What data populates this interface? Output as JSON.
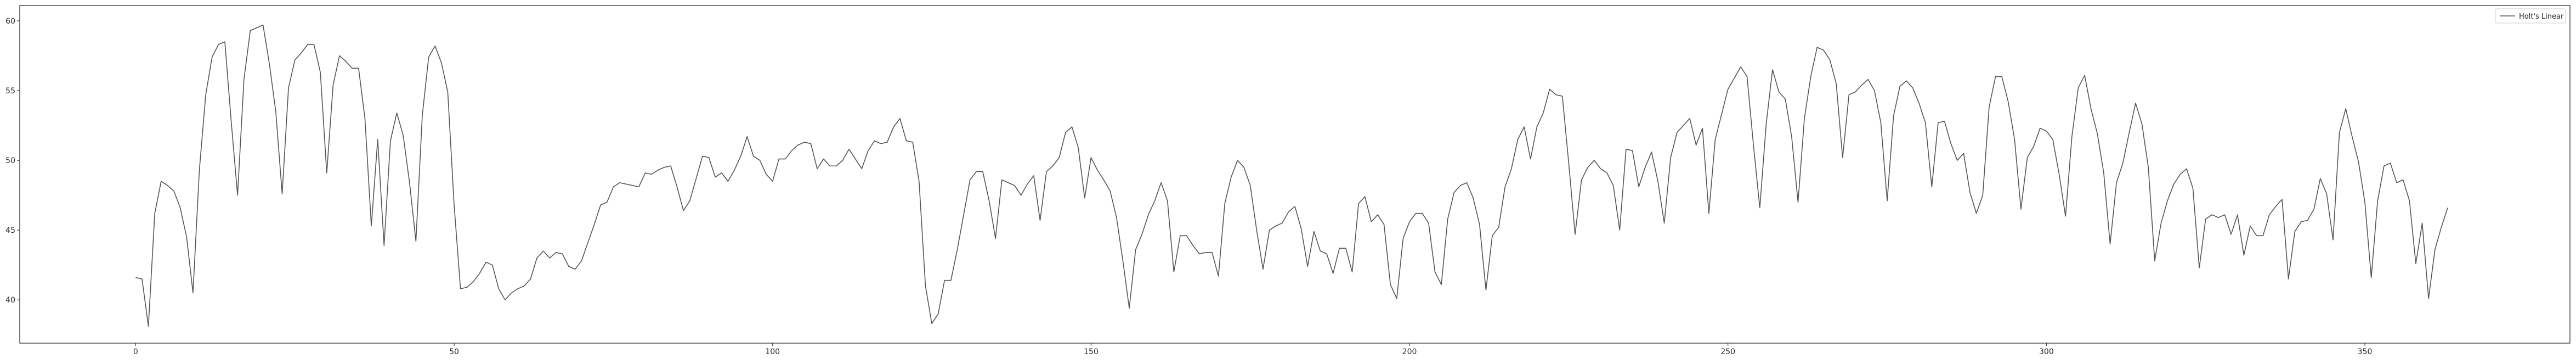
{
  "chart_data": {
    "type": "line",
    "title": "",
    "xlabel": "",
    "ylabel": "",
    "xlim": [
      -18.2,
      382.2
    ],
    "ylim": [
      36.9,
      61.1
    ],
    "xticks": [
      0,
      50,
      100,
      150,
      200,
      250,
      300,
      350
    ],
    "yticks": [
      40,
      45,
      50,
      55,
      60
    ],
    "grid": false,
    "legend_position": "top-right",
    "series": [
      {
        "name": "Holt's Linear",
        "color": "#555555",
        "x_start": 0,
        "x_step": 1,
        "values": [
          41.6,
          41.5,
          38.1,
          46.2,
          48.5,
          48.2,
          47.8,
          46.6,
          44.5,
          40.5,
          49.3,
          54.7,
          57.4,
          58.3,
          58.5,
          52.8,
          47.5,
          55.8,
          59.3,
          59.5,
          59.7,
          56.9,
          53.5,
          47.6,
          55.2,
          57.2,
          57.7,
          58.3,
          58.3,
          56.3,
          49.1,
          55.4,
          57.5,
          57.1,
          56.6,
          56.6,
          53.0,
          45.3,
          51.5,
          43.9,
          51.4,
          53.4,
          51.8,
          48.4,
          44.2,
          53.2,
          57.4,
          58.2,
          57.0,
          54.9,
          46.8,
          40.8,
          40.9,
          41.3,
          41.9,
          42.7,
          42.5,
          40.8,
          40.0,
          40.5,
          40.8,
          41.0,
          41.5,
          43.0,
          43.5,
          43.0,
          43.4,
          43.3,
          42.4,
          42.2,
          42.8,
          44.1,
          45.4,
          46.8,
          47.0,
          48.1,
          48.4,
          48.3,
          48.2,
          48.1,
          49.1,
          49.0,
          49.3,
          49.5,
          49.6,
          48.1,
          46.4,
          47.1,
          48.7,
          50.3,
          50.2,
          48.8,
          49.1,
          48.5,
          49.3,
          50.3,
          51.7,
          50.3,
          50.0,
          49.0,
          48.5,
          50.1,
          50.1,
          50.7,
          51.1,
          51.3,
          51.2,
          49.4,
          50.1,
          49.6,
          49.6,
          50.0,
          50.8,
          50.1,
          49.4,
          50.7,
          51.4,
          51.2,
          51.3,
          52.4,
          53.0,
          51.4,
          51.3,
          48.5,
          41.0,
          38.3,
          39.0,
          41.4,
          41.4,
          43.6,
          46.1,
          48.6,
          49.2,
          49.2,
          47.1,
          44.4,
          48.6,
          48.4,
          48.2,
          47.5,
          48.3,
          48.9,
          45.7,
          49.2,
          49.6,
          50.2,
          52.0,
          52.4,
          50.9,
          47.3,
          50.2,
          49.3,
          48.6,
          47.8,
          45.9,
          42.8,
          39.4,
          43.6,
          44.7,
          46.1,
          47.1,
          48.4,
          47.1,
          42.0,
          44.6,
          44.6,
          43.9,
          43.3,
          43.4,
          43.4,
          41.7,
          46.9,
          48.8,
          50.0,
          49.5,
          48.2,
          45.0,
          42.2,
          45.0,
          45.3,
          45.5,
          46.3,
          46.7,
          45.1,
          42.4,
          44.9,
          43.5,
          43.3,
          41.9,
          43.7,
          43.7,
          42.0,
          46.9,
          47.4,
          45.6,
          46.1,
          45.4,
          41.1,
          40.1,
          44.4,
          45.6,
          46.2,
          46.2,
          45.5,
          42.0,
          41.1,
          45.8,
          47.7,
          48.2,
          48.4,
          47.3,
          45.4,
          40.7,
          44.6,
          45.2,
          48.1,
          49.4,
          51.5,
          52.4,
          50.1,
          52.4,
          53.4,
          55.1,
          54.7,
          54.6,
          49.8,
          44.7,
          48.6,
          49.5,
          50.0,
          49.4,
          49.1,
          48.2,
          45.0,
          50.8,
          50.7,
          48.1,
          49.5,
          50.6,
          48.5,
          45.5,
          50.2,
          52.0,
          52.5,
          53.0,
          51.1,
          52.3,
          46.2,
          51.5,
          53.3,
          55.1,
          55.9,
          56.7,
          56.0,
          51.1,
          46.6,
          52.6,
          56.5,
          54.9,
          54.4,
          51.7,
          47.0,
          53.0,
          56.0,
          58.1,
          57.9,
          57.2,
          55.5,
          50.2,
          54.7,
          54.9,
          55.4,
          55.8,
          55.0,
          52.7,
          47.1,
          53.2,
          55.3,
          55.7,
          55.2,
          54.1,
          52.7,
          48.1,
          52.7,
          52.8,
          51.2,
          50.0,
          50.5,
          47.7,
          46.2,
          47.5,
          53.8,
          56.0,
          56.0,
          54.2,
          51.5,
          46.5,
          50.2,
          51.0,
          52.3,
          52.1,
          51.5,
          49.0,
          46.0,
          51.7,
          55.2,
          56.1,
          53.7,
          51.9,
          49.1,
          44.0,
          48.4,
          49.8,
          52.0,
          54.1,
          52.6,
          49.5,
          42.8,
          45.5,
          47.1,
          48.3,
          49.0,
          49.4,
          48.0,
          42.3,
          45.8,
          46.1,
          45.9,
          46.1,
          44.7,
          46.1,
          43.2,
          45.3,
          44.6,
          44.6,
          46.1,
          46.7,
          47.2,
          41.5,
          44.9,
          45.6,
          45.7,
          46.5,
          48.7,
          47.6,
          44.3,
          52.0,
          53.7,
          51.7,
          49.9,
          47.0,
          41.6,
          47.1,
          49.6,
          49.8,
          48.4,
          48.6,
          47.1,
          42.6,
          45.5,
          40.1,
          43.6,
          45.2,
          46.6
        ]
      }
    ]
  }
}
